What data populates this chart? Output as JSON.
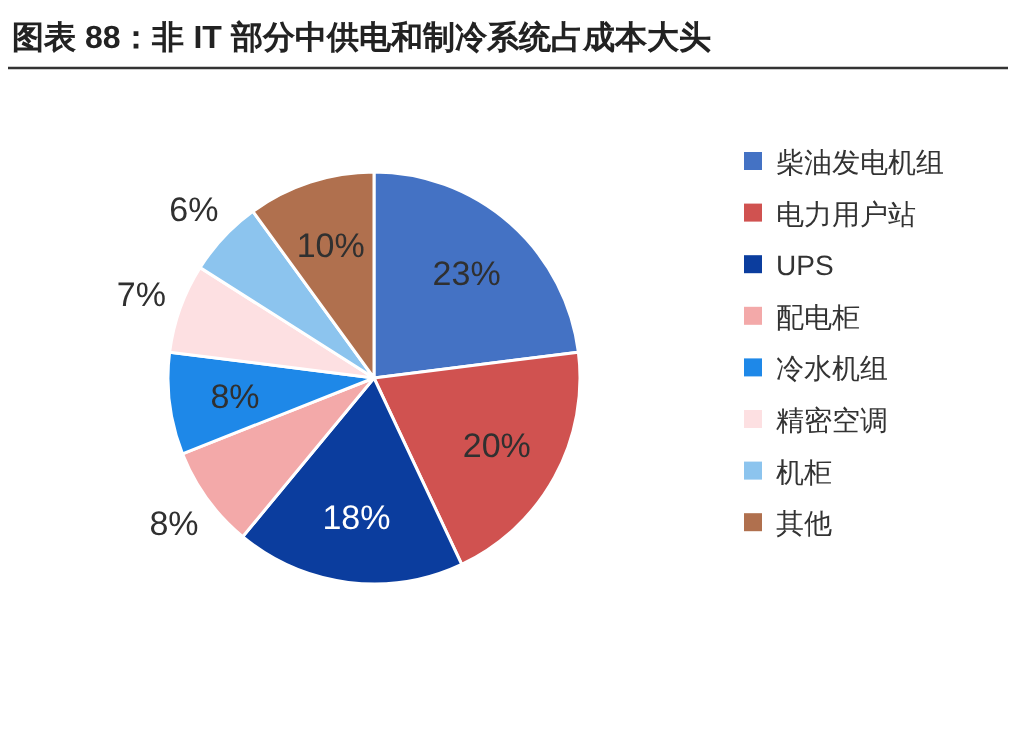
{
  "chart_data": {
    "type": "pie",
    "title": "图表 88：非 IT 部分中供电和制冷系统占成本大头",
    "categories": [
      "柴油发电机组",
      "电力用户站",
      "UPS",
      "配电柜",
      "冷水机组",
      "精密空调",
      "机柜",
      "其他"
    ],
    "values": [
      23,
      20,
      18,
      8,
      8,
      7,
      6,
      10
    ],
    "colors": [
      "#4472c4",
      "#d05250",
      "#0b3d9e",
      "#f3a9a9",
      "#1e88e8",
      "#fde0e2",
      "#8cc4ee",
      "#b0704e"
    ],
    "value_labels": [
      "23%",
      "20%",
      "18%",
      "8%",
      "8%",
      "7%",
      "6%",
      "10%"
    ],
    "legend": "right"
  }
}
